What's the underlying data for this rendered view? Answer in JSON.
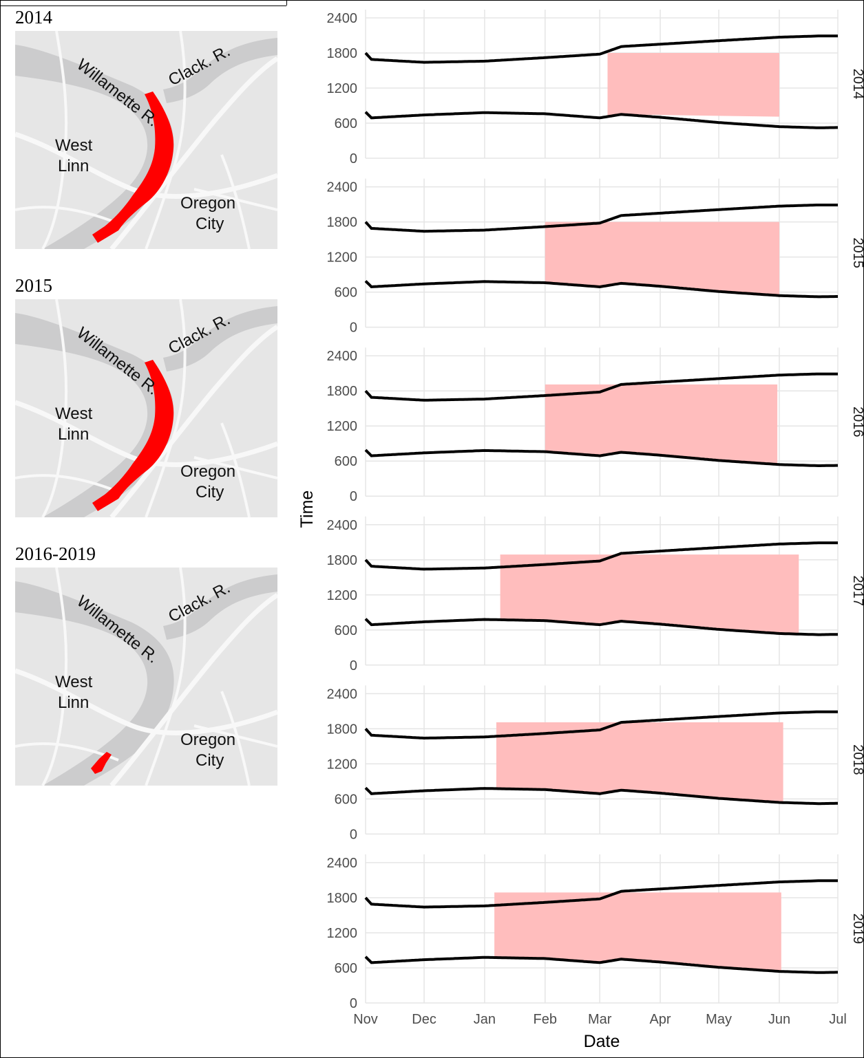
{
  "maps": [
    {
      "label": "2014",
      "extent": "long"
    },
    {
      "label": "2015",
      "extent": "long"
    },
    {
      "label": "2016-2019",
      "extent": "short"
    }
  ],
  "map_text": {
    "river_main": "Willamette R.",
    "river_trib": "Clack. R.",
    "city_west": "West",
    "city_west2": "Linn",
    "city_east": "Oregon",
    "city_east2": "City"
  },
  "colors": {
    "fishery": "#ff0000",
    "shade": "#ffbdbd",
    "land": "#e6e6e6",
    "water": "#cccccd",
    "road": "#f8f8f8"
  },
  "chart_data": {
    "type": "area",
    "xlabel": "Date",
    "ylabel": "Time",
    "x_ticks": [
      "Nov",
      "Dec",
      "Jan",
      "Feb",
      "Mar",
      "Apr",
      "May",
      "Jun",
      "Jul"
    ],
    "y_ticks": [
      0,
      600,
      1200,
      1800,
      2400
    ],
    "ylim": [
      0,
      2400
    ],
    "xlim": [
      "Nov 1",
      "Jul 1"
    ],
    "grid": true,
    "facets": [
      {
        "label": "2014",
        "shade_start": "Mar 5",
        "shade_end": "Jun 1",
        "shade_top": 1800,
        "shade_bottom": 710
      },
      {
        "label": "2015",
        "shade_start": "Feb 1",
        "shade_end": "Jun 1",
        "shade_top": 1800,
        "shade_bottom": "sunrise"
      },
      {
        "label": "2016",
        "shade_start": "Feb 1",
        "shade_end": "May 31",
        "shade_top": 1910,
        "shade_bottom": "sunrise"
      },
      {
        "label": "2017",
        "shade_start": "Jan 9",
        "shade_end": "Jun 11",
        "shade_top": 1890,
        "shade_bottom": "sunrise"
      },
      {
        "label": "2018",
        "shade_start": "Jan 7",
        "shade_end": "Jun 3",
        "shade_top": 1910,
        "shade_bottom": "sunrise"
      },
      {
        "label": "2019",
        "shade_start": "Jan 6",
        "shade_end": "Jun 2",
        "shade_top": 1890,
        "shade_bottom": "sunrise"
      }
    ],
    "sunset_series": {
      "x": [
        "Nov 1",
        "Nov 4",
        "Dec 1",
        "Jan 1",
        "Feb 1",
        "Mar 1",
        "Mar 12",
        "Apr 1",
        "May 1",
        "Jun 1",
        "Jun 21",
        "Jul 1"
      ],
      "y": [
        1800,
        1690,
        1640,
        1660,
        1720,
        1780,
        1910,
        1950,
        2010,
        2070,
        2090,
        2090
      ]
    },
    "sunrise_series": {
      "x": [
        "Nov 1",
        "Nov 4",
        "Dec 1",
        "Jan 1",
        "Feb 1",
        "Mar 1",
        "Mar 12",
        "Apr 1",
        "May 1",
        "Jun 1",
        "Jun 21",
        "Jul 1"
      ],
      "y": [
        790,
        690,
        740,
        780,
        760,
        690,
        750,
        700,
        610,
        540,
        520,
        525
      ]
    }
  }
}
